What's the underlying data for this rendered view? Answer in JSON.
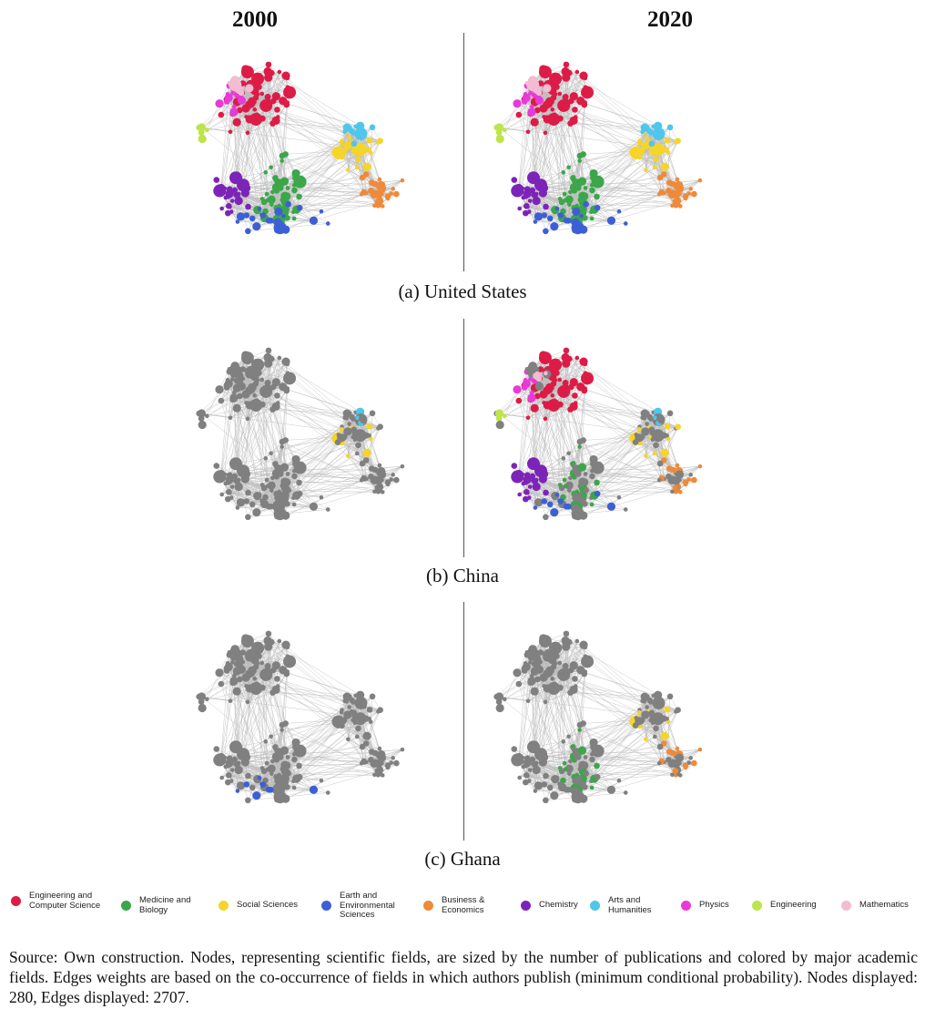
{
  "columns": [
    "2000",
    "2020"
  ],
  "panels": [
    {
      "caption": "(a) United States",
      "left_visible": "all",
      "right_visible": "all"
    },
    {
      "caption": "(b) China",
      "left_visible": [
        "Arts and Humanities",
        "Social Sciences"
      ],
      "right_visible": "all_sparse"
    },
    {
      "caption": "(c) Ghana",
      "left_visible": [
        "Earth and Environmental Sciences"
      ],
      "right_visible": [
        "Social Sciences",
        "Business & Economics",
        "Medicine and Biology"
      ]
    }
  ],
  "legend": [
    {
      "label": "Engineering and Computer Science",
      "color": "#dc1c46"
    },
    {
      "label": "Medicine and Biology",
      "color": "#3ca64a"
    },
    {
      "label": "Social Sciences",
      "color": "#f5d52a"
    },
    {
      "label": "Earth and Environmental Sciences",
      "color": "#3d5fd6"
    },
    {
      "label": "Business & Economics",
      "color": "#ee8a3a"
    },
    {
      "label": "Chemistry",
      "color": "#7d24b8"
    },
    {
      "label": "Arts and Humanities",
      "color": "#4fc6ec"
    },
    {
      "label": "Physics",
      "color": "#e83ad8"
    },
    {
      "label": "Engineering",
      "color": "#bde44a"
    },
    {
      "label": "Mathematics",
      "color": "#f3bcd2"
    }
  ],
  "inactive_color": "#808080",
  "edge_color": "#bdbdbd",
  "source_note": "Source: Own construction. Nodes, representing scientific fields, are sized by the number of publications and colored by major academic fields. Edges weights are based on the co-occurrence of fields in which authors publish (minimum conditional probability). Nodes displayed: 280, Edges displayed: 2707."
}
